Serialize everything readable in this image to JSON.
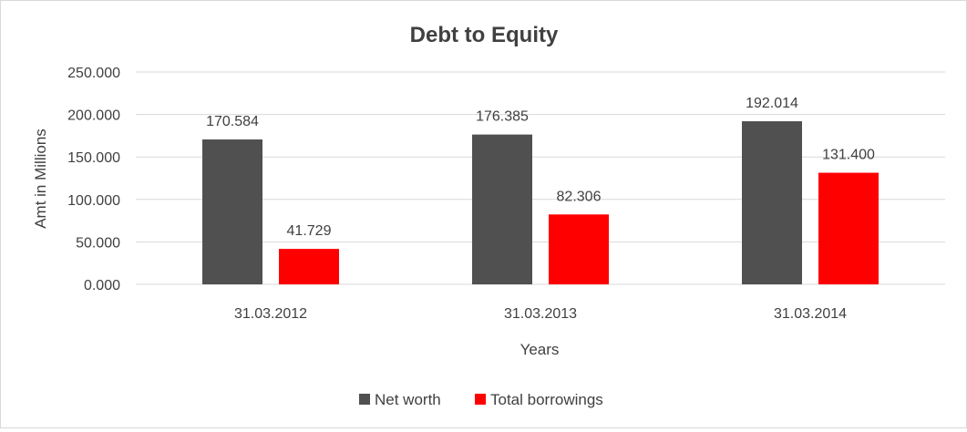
{
  "chart_data": {
    "type": "bar",
    "title": "Debt to Equity",
    "xlabel": "Years",
    "ylabel": "Amt in Millions",
    "categories": [
      "31.03.2012",
      "31.03.2013",
      "31.03.2014"
    ],
    "series": [
      {
        "name": "Net worth",
        "color": "#505050",
        "values": [
          170.584,
          176.385,
          192.014
        ],
        "labels": [
          "170.584",
          "176.385",
          "192.014"
        ]
      },
      {
        "name": "Total borrowings",
        "color": "#ff0000",
        "values": [
          41.729,
          82.306,
          131.4
        ],
        "labels": [
          "41.729",
          "82.306",
          "131.400"
        ]
      }
    ],
    "yticks": [
      0,
      50,
      100,
      150,
      200,
      250
    ],
    "ytick_labels": [
      "0.000",
      "50.000",
      "100.000",
      "150.000",
      "200.000",
      "250.000"
    ],
    "ylim": [
      0,
      250
    ],
    "grid": true,
    "legend_position": "bottom"
  }
}
